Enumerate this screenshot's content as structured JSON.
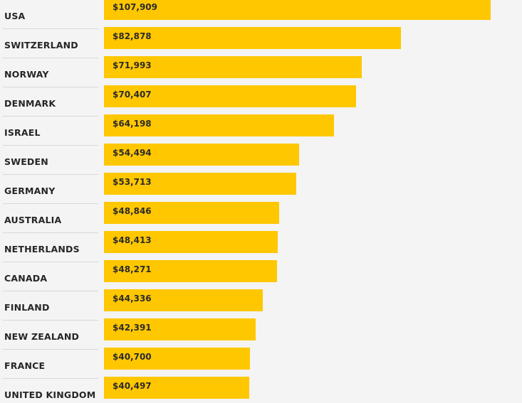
{
  "chart_data": {
    "type": "bar",
    "orientation": "horizontal",
    "categories": [
      "USA",
      "SWITZERLAND",
      "NORWAY",
      "DENMARK",
      "ISRAEL",
      "SWEDEN",
      "GERMANY",
      "AUSTRALIA",
      "NETHERLANDS",
      "CANADA",
      "FINLAND",
      "NEW ZEALAND",
      "FRANCE",
      "UNITED KINGDOM"
    ],
    "values": [
      107909,
      82878,
      71993,
      70407,
      64198,
      54494,
      53713,
      48846,
      48413,
      48271,
      44336,
      42391,
      40700,
      40497
    ],
    "value_labels": [
      "$107,909",
      "$82,878",
      "$71,993",
      "$70,407",
      "$64,198",
      "$54,494",
      "$53,713",
      "$48,846",
      "$48,413",
      "$48,271",
      "$44,336",
      "$42,391",
      "$40,700",
      "$40,497"
    ],
    "bar_color": "#ffc700",
    "background_color": "#f4f4f4",
    "grid": false,
    "legend": "none"
  }
}
